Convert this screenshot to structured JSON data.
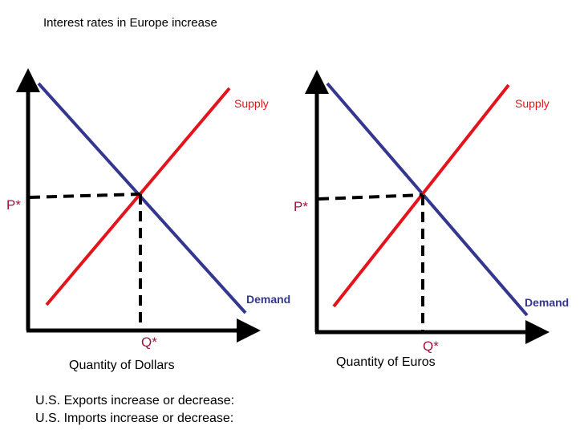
{
  "title": "Interest rates in Europe increase",
  "colors": {
    "supply": "#e3141b",
    "demand": "#34378f",
    "axis": "#000000",
    "eq_label": "#9e1640"
  },
  "graphs": [
    {
      "p_label": "P*",
      "q_label": "Q*",
      "supply_label": "Supply",
      "demand_label": "Demand",
      "x_caption": "Quantity of Dollars"
    },
    {
      "p_label": "P*",
      "q_label": "Q*",
      "supply_label": "Supply",
      "demand_label": "Demand",
      "x_caption": "Quantity of Euros"
    }
  ],
  "questions": [
    "U.S. Exports increase or decrease:",
    "U.S. Imports increase or decrease:"
  ]
}
